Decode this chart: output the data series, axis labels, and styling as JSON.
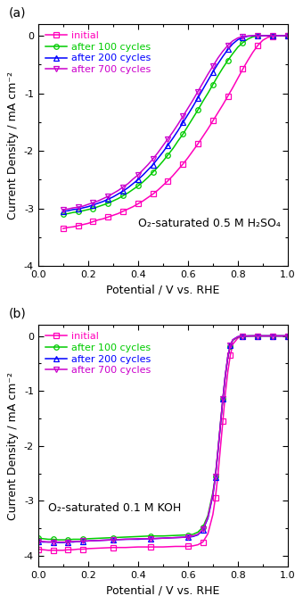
{
  "panel_a": {
    "annotation": "O₂-saturated 0.5 M H₂SO₄",
    "xlabel": "Potential / V vs. RHE",
    "ylabel": "Current Density / mA cm⁻²",
    "xlim": [
      0.0,
      1.0
    ],
    "ylim": [
      -4.0,
      0.2
    ],
    "yticks": [
      0,
      -1,
      -2,
      -3,
      -4
    ],
    "xticks": [
      0.0,
      0.2,
      0.4,
      0.6,
      0.8,
      1.0
    ],
    "label": "(a)",
    "series": {
      "initial": {
        "color": "#ff00bb",
        "marker": "s",
        "label": "initial",
        "x": [
          0.1,
          0.12,
          0.14,
          0.16,
          0.18,
          0.2,
          0.22,
          0.24,
          0.26,
          0.28,
          0.3,
          0.32,
          0.34,
          0.36,
          0.38,
          0.4,
          0.42,
          0.44,
          0.46,
          0.48,
          0.5,
          0.52,
          0.54,
          0.56,
          0.58,
          0.6,
          0.62,
          0.64,
          0.66,
          0.68,
          0.7,
          0.72,
          0.74,
          0.76,
          0.78,
          0.8,
          0.82,
          0.84,
          0.86,
          0.88,
          0.9,
          0.92,
          0.94,
          0.96,
          0.98,
          1.0
        ],
        "y": [
          -3.35,
          -3.33,
          -3.32,
          -3.3,
          -3.28,
          -3.26,
          -3.23,
          -3.2,
          -3.18,
          -3.15,
          -3.12,
          -3.09,
          -3.05,
          -3.01,
          -2.97,
          -2.92,
          -2.87,
          -2.81,
          -2.75,
          -2.68,
          -2.6,
          -2.52,
          -2.43,
          -2.33,
          -2.23,
          -2.12,
          -2.0,
          -1.88,
          -1.75,
          -1.62,
          -1.48,
          -1.34,
          -1.2,
          -1.05,
          -0.9,
          -0.74,
          -0.58,
          -0.43,
          -0.29,
          -0.17,
          -0.08,
          -0.03,
          -0.01,
          -0.003,
          -0.001,
          0.0
        ]
      },
      "100cycles": {
        "color": "#00cc00",
        "marker": "o",
        "label": "after 100 cycles",
        "x": [
          0.1,
          0.12,
          0.14,
          0.16,
          0.18,
          0.2,
          0.22,
          0.24,
          0.26,
          0.28,
          0.3,
          0.32,
          0.34,
          0.36,
          0.38,
          0.4,
          0.42,
          0.44,
          0.46,
          0.48,
          0.5,
          0.52,
          0.54,
          0.56,
          0.58,
          0.6,
          0.62,
          0.64,
          0.66,
          0.68,
          0.7,
          0.72,
          0.74,
          0.76,
          0.78,
          0.8,
          0.82,
          0.84,
          0.86,
          0.88,
          0.9,
          0.92,
          0.94,
          0.96,
          0.98,
          1.0
        ],
        "y": [
          -3.1,
          -3.09,
          -3.07,
          -3.06,
          -3.04,
          -3.02,
          -3.0,
          -2.97,
          -2.94,
          -2.91,
          -2.87,
          -2.83,
          -2.78,
          -2.73,
          -2.67,
          -2.61,
          -2.54,
          -2.46,
          -2.37,
          -2.28,
          -2.18,
          -2.07,
          -1.96,
          -1.83,
          -1.71,
          -1.57,
          -1.43,
          -1.29,
          -1.14,
          -1.0,
          -0.85,
          -0.7,
          -0.56,
          -0.43,
          -0.31,
          -0.2,
          -0.12,
          -0.06,
          -0.02,
          -0.005,
          -0.001,
          0.0,
          0.0,
          0.0,
          0.0,
          0.0
        ]
      },
      "200cycles": {
        "color": "#0000ff",
        "marker": "^",
        "label": "after 200 cycles",
        "x": [
          0.1,
          0.12,
          0.14,
          0.16,
          0.18,
          0.2,
          0.22,
          0.24,
          0.26,
          0.28,
          0.3,
          0.32,
          0.34,
          0.36,
          0.38,
          0.4,
          0.42,
          0.44,
          0.46,
          0.48,
          0.5,
          0.52,
          0.54,
          0.56,
          0.58,
          0.6,
          0.62,
          0.64,
          0.66,
          0.68,
          0.7,
          0.72,
          0.74,
          0.76,
          0.78,
          0.8,
          0.82,
          0.84,
          0.86,
          0.88,
          0.9,
          0.92,
          0.94,
          0.96,
          0.98,
          1.0
        ],
        "y": [
          -3.05,
          -3.04,
          -3.02,
          -3.01,
          -2.99,
          -2.97,
          -2.94,
          -2.91,
          -2.88,
          -2.84,
          -2.8,
          -2.75,
          -2.7,
          -2.64,
          -2.57,
          -2.5,
          -2.42,
          -2.33,
          -2.24,
          -2.13,
          -2.02,
          -1.9,
          -1.78,
          -1.65,
          -1.51,
          -1.37,
          -1.23,
          -1.08,
          -0.93,
          -0.78,
          -0.63,
          -0.49,
          -0.36,
          -0.24,
          -0.14,
          -0.07,
          -0.03,
          -0.01,
          -0.003,
          -0.001,
          0.0,
          0.0,
          0.0,
          0.0,
          0.0,
          0.0
        ]
      },
      "700cycles": {
        "color": "#cc00cc",
        "marker": "v",
        "label": "after 700 cycles",
        "x": [
          0.1,
          0.12,
          0.14,
          0.16,
          0.18,
          0.2,
          0.22,
          0.24,
          0.26,
          0.28,
          0.3,
          0.32,
          0.34,
          0.36,
          0.38,
          0.4,
          0.42,
          0.44,
          0.46,
          0.48,
          0.5,
          0.52,
          0.54,
          0.56,
          0.58,
          0.6,
          0.62,
          0.64,
          0.66,
          0.68,
          0.7,
          0.72,
          0.74,
          0.76,
          0.78,
          0.8,
          0.82,
          0.84,
          0.86,
          0.88,
          0.9,
          0.92,
          0.94,
          0.96,
          0.98,
          1.0
        ],
        "y": [
          -3.02,
          -3.01,
          -2.99,
          -2.98,
          -2.96,
          -2.93,
          -2.9,
          -2.87,
          -2.83,
          -2.79,
          -2.74,
          -2.69,
          -2.63,
          -2.57,
          -2.49,
          -2.42,
          -2.33,
          -2.24,
          -2.14,
          -2.03,
          -1.91,
          -1.79,
          -1.67,
          -1.54,
          -1.4,
          -1.26,
          -1.12,
          -0.97,
          -0.82,
          -0.67,
          -0.53,
          -0.39,
          -0.27,
          -0.17,
          -0.09,
          -0.04,
          -0.015,
          -0.005,
          -0.001,
          0.0,
          0.0,
          0.0,
          0.0,
          0.0,
          0.0,
          0.0
        ]
      }
    }
  },
  "panel_b": {
    "annotation": "O₂-saturated 0.1 M KOH",
    "xlabel": "Potential / V vs. RHE",
    "ylabel": "Current Density / mA cm⁻²",
    "xlim": [
      0.0,
      1.0
    ],
    "ylim": [
      -4.2,
      0.2
    ],
    "yticks": [
      0,
      -1,
      -2,
      -3,
      -4
    ],
    "xticks": [
      0.0,
      0.2,
      0.4,
      0.6,
      0.8,
      1.0
    ],
    "label": "(b)",
    "series": {
      "initial": {
        "color": "#ff00bb",
        "marker": "s",
        "label": "initial",
        "x": [
          0.0,
          0.02,
          0.04,
          0.06,
          0.08,
          0.1,
          0.12,
          0.14,
          0.16,
          0.18,
          0.2,
          0.25,
          0.3,
          0.35,
          0.4,
          0.45,
          0.5,
          0.55,
          0.6,
          0.62,
          0.64,
          0.66,
          0.68,
          0.7,
          0.71,
          0.72,
          0.73,
          0.74,
          0.75,
          0.76,
          0.77,
          0.78,
          0.8,
          0.82,
          0.84,
          0.86,
          0.88,
          0.9,
          0.92,
          0.94,
          0.96,
          0.98,
          1.0
        ],
        "y": [
          -3.88,
          -3.89,
          -3.9,
          -3.9,
          -3.9,
          -3.9,
          -3.89,
          -3.89,
          -3.88,
          -3.88,
          -3.87,
          -3.86,
          -3.85,
          -3.85,
          -3.84,
          -3.84,
          -3.84,
          -3.83,
          -3.83,
          -3.82,
          -3.8,
          -3.75,
          -3.6,
          -3.25,
          -2.95,
          -2.55,
          -2.05,
          -1.55,
          -1.05,
          -0.65,
          -0.35,
          -0.15,
          -0.04,
          -0.01,
          -0.003,
          -0.001,
          0.0,
          0.0,
          0.0,
          0.0,
          0.0,
          0.0,
          0.0
        ]
      },
      "100cycles": {
        "color": "#00cc00",
        "marker": "o",
        "label": "after 100 cycles",
        "x": [
          0.0,
          0.02,
          0.04,
          0.06,
          0.08,
          0.1,
          0.12,
          0.14,
          0.16,
          0.18,
          0.2,
          0.25,
          0.3,
          0.35,
          0.4,
          0.45,
          0.5,
          0.55,
          0.6,
          0.62,
          0.64,
          0.66,
          0.68,
          0.7,
          0.71,
          0.72,
          0.73,
          0.74,
          0.75,
          0.76,
          0.77,
          0.78,
          0.8,
          0.82,
          0.84,
          0.86,
          0.88,
          0.9,
          0.92,
          0.94,
          0.96,
          0.98,
          1.0
        ],
        "y": [
          -3.68,
          -3.69,
          -3.7,
          -3.7,
          -3.71,
          -3.71,
          -3.71,
          -3.7,
          -3.7,
          -3.7,
          -3.69,
          -3.68,
          -3.67,
          -3.66,
          -3.65,
          -3.64,
          -3.64,
          -3.63,
          -3.62,
          -3.61,
          -3.57,
          -3.48,
          -3.27,
          -2.85,
          -2.55,
          -2.1,
          -1.62,
          -1.15,
          -0.72,
          -0.39,
          -0.18,
          -0.08,
          -0.02,
          -0.005,
          -0.001,
          0.0,
          0.0,
          0.0,
          0.0,
          0.0,
          0.0,
          0.0,
          0.0
        ]
      },
      "200cycles": {
        "color": "#0000ff",
        "marker": "^",
        "label": "after 200 cycles",
        "x": [
          0.0,
          0.02,
          0.04,
          0.06,
          0.08,
          0.1,
          0.12,
          0.14,
          0.16,
          0.18,
          0.2,
          0.25,
          0.3,
          0.35,
          0.4,
          0.45,
          0.5,
          0.55,
          0.6,
          0.62,
          0.64,
          0.66,
          0.68,
          0.7,
          0.71,
          0.72,
          0.73,
          0.74,
          0.75,
          0.76,
          0.77,
          0.78,
          0.8,
          0.82,
          0.84,
          0.86,
          0.88,
          0.9,
          0.92,
          0.94,
          0.96,
          0.98,
          1.0
        ],
        "y": [
          -3.74,
          -3.75,
          -3.75,
          -3.75,
          -3.76,
          -3.76,
          -3.75,
          -3.75,
          -3.74,
          -3.74,
          -3.73,
          -3.72,
          -3.71,
          -3.7,
          -3.7,
          -3.69,
          -3.68,
          -3.67,
          -3.66,
          -3.65,
          -3.62,
          -3.53,
          -3.32,
          -2.9,
          -2.58,
          -2.12,
          -1.63,
          -1.15,
          -0.72,
          -0.38,
          -0.17,
          -0.07,
          -0.015,
          -0.004,
          -0.001,
          0.0,
          0.0,
          0.0,
          0.0,
          0.0,
          0.0,
          0.0,
          0.0
        ]
      },
      "700cycles": {
        "color": "#cc00cc",
        "marker": "v",
        "label": "after 700 cycles",
        "x": [
          0.0,
          0.02,
          0.04,
          0.06,
          0.08,
          0.1,
          0.12,
          0.14,
          0.16,
          0.18,
          0.2,
          0.25,
          0.3,
          0.35,
          0.4,
          0.45,
          0.5,
          0.55,
          0.6,
          0.62,
          0.64,
          0.66,
          0.68,
          0.7,
          0.71,
          0.72,
          0.73,
          0.74,
          0.75,
          0.76,
          0.77,
          0.78,
          0.8,
          0.82,
          0.84,
          0.86,
          0.88,
          0.9,
          0.92,
          0.94,
          0.96,
          0.98,
          1.0
        ],
        "y": [
          -3.74,
          -3.74,
          -3.75,
          -3.75,
          -3.75,
          -3.75,
          -3.75,
          -3.74,
          -3.74,
          -3.73,
          -3.73,
          -3.72,
          -3.71,
          -3.7,
          -3.69,
          -3.69,
          -3.68,
          -3.67,
          -3.66,
          -3.64,
          -3.61,
          -3.52,
          -3.3,
          -2.88,
          -2.56,
          -2.1,
          -1.62,
          -1.14,
          -0.71,
          -0.38,
          -0.17,
          -0.07,
          -0.015,
          -0.004,
          -0.001,
          0.0,
          0.0,
          0.0,
          0.0,
          0.0,
          0.0,
          0.0,
          0.0
        ]
      }
    }
  },
  "colors": {
    "initial": "#ff00bb",
    "100cycles": "#00cc00",
    "200cycles": "#0000ff",
    "700cycles": "#cc00cc"
  },
  "marker_size": 4,
  "line_width": 1.1,
  "font_size_label": 9,
  "font_size_tick": 8,
  "font_size_legend": 8,
  "font_size_annotation": 9,
  "background_color": "#ffffff"
}
